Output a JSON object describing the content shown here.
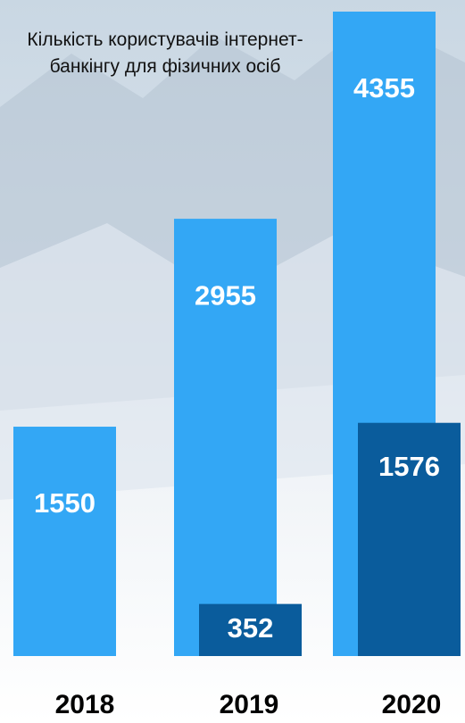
{
  "chart_data": {
    "type": "bar",
    "title": "Кількість користувачів інтернет-банкінгу для фізичних осіб",
    "categories": [
      "2018",
      "2019",
      "2020"
    ],
    "series": [
      {
        "color": "#33a7f5",
        "values": [
          1550,
          2955,
          4355
        ]
      },
      {
        "color": "#0a5c9c",
        "values": [
          null,
          352,
          1576
        ]
      }
    ]
  }
}
